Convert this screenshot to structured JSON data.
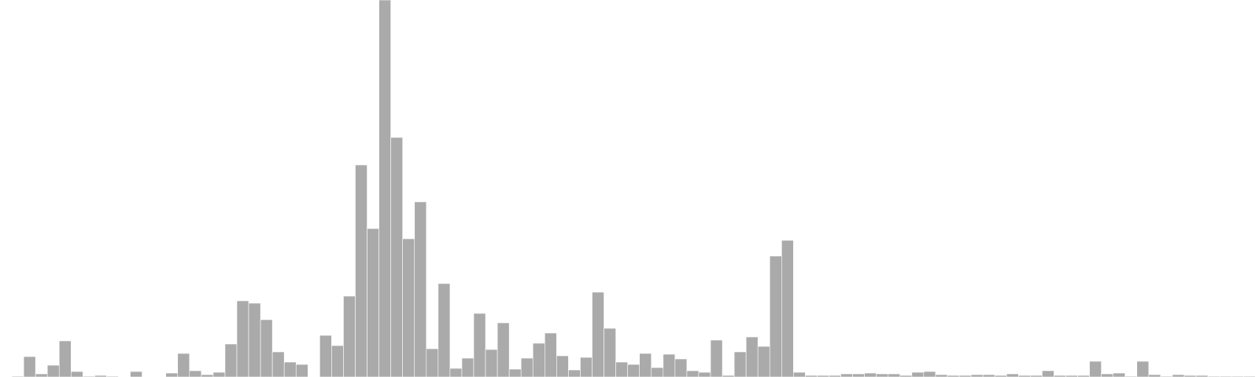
{
  "chart_data": {
    "type": "bar",
    "bar_color": "#aaaaaa",
    "ylim": [
      0,
      480
    ],
    "values": [
      0,
      1,
      26,
      4,
      15,
      46,
      7,
      1,
      2,
      1,
      0,
      7,
      0,
      0,
      5,
      30,
      8,
      3,
      6,
      42,
      97,
      94,
      73,
      32,
      19,
      16,
      0,
      53,
      40,
      103,
      270,
      189,
      480,
      305,
      176,
      223,
      36,
      119,
      11,
      24,
      81,
      35,
      69,
      10,
      24,
      43,
      56,
      27,
      9,
      25,
      108,
      62,
      19,
      16,
      30,
      12,
      29,
      23,
      8,
      6,
      47,
      2,
      32,
      51,
      39,
      154,
      174,
      6,
      2,
      2,
      2,
      4,
      4,
      5,
      4,
      4,
      2,
      6,
      7,
      3,
      2,
      2,
      3,
      3,
      2,
      4,
      2,
      2,
      8,
      2,
      2,
      2,
      20,
      4,
      5,
      1,
      20,
      3,
      1,
      3,
      2,
      2,
      1,
      1,
      1,
      1
    ]
  }
}
